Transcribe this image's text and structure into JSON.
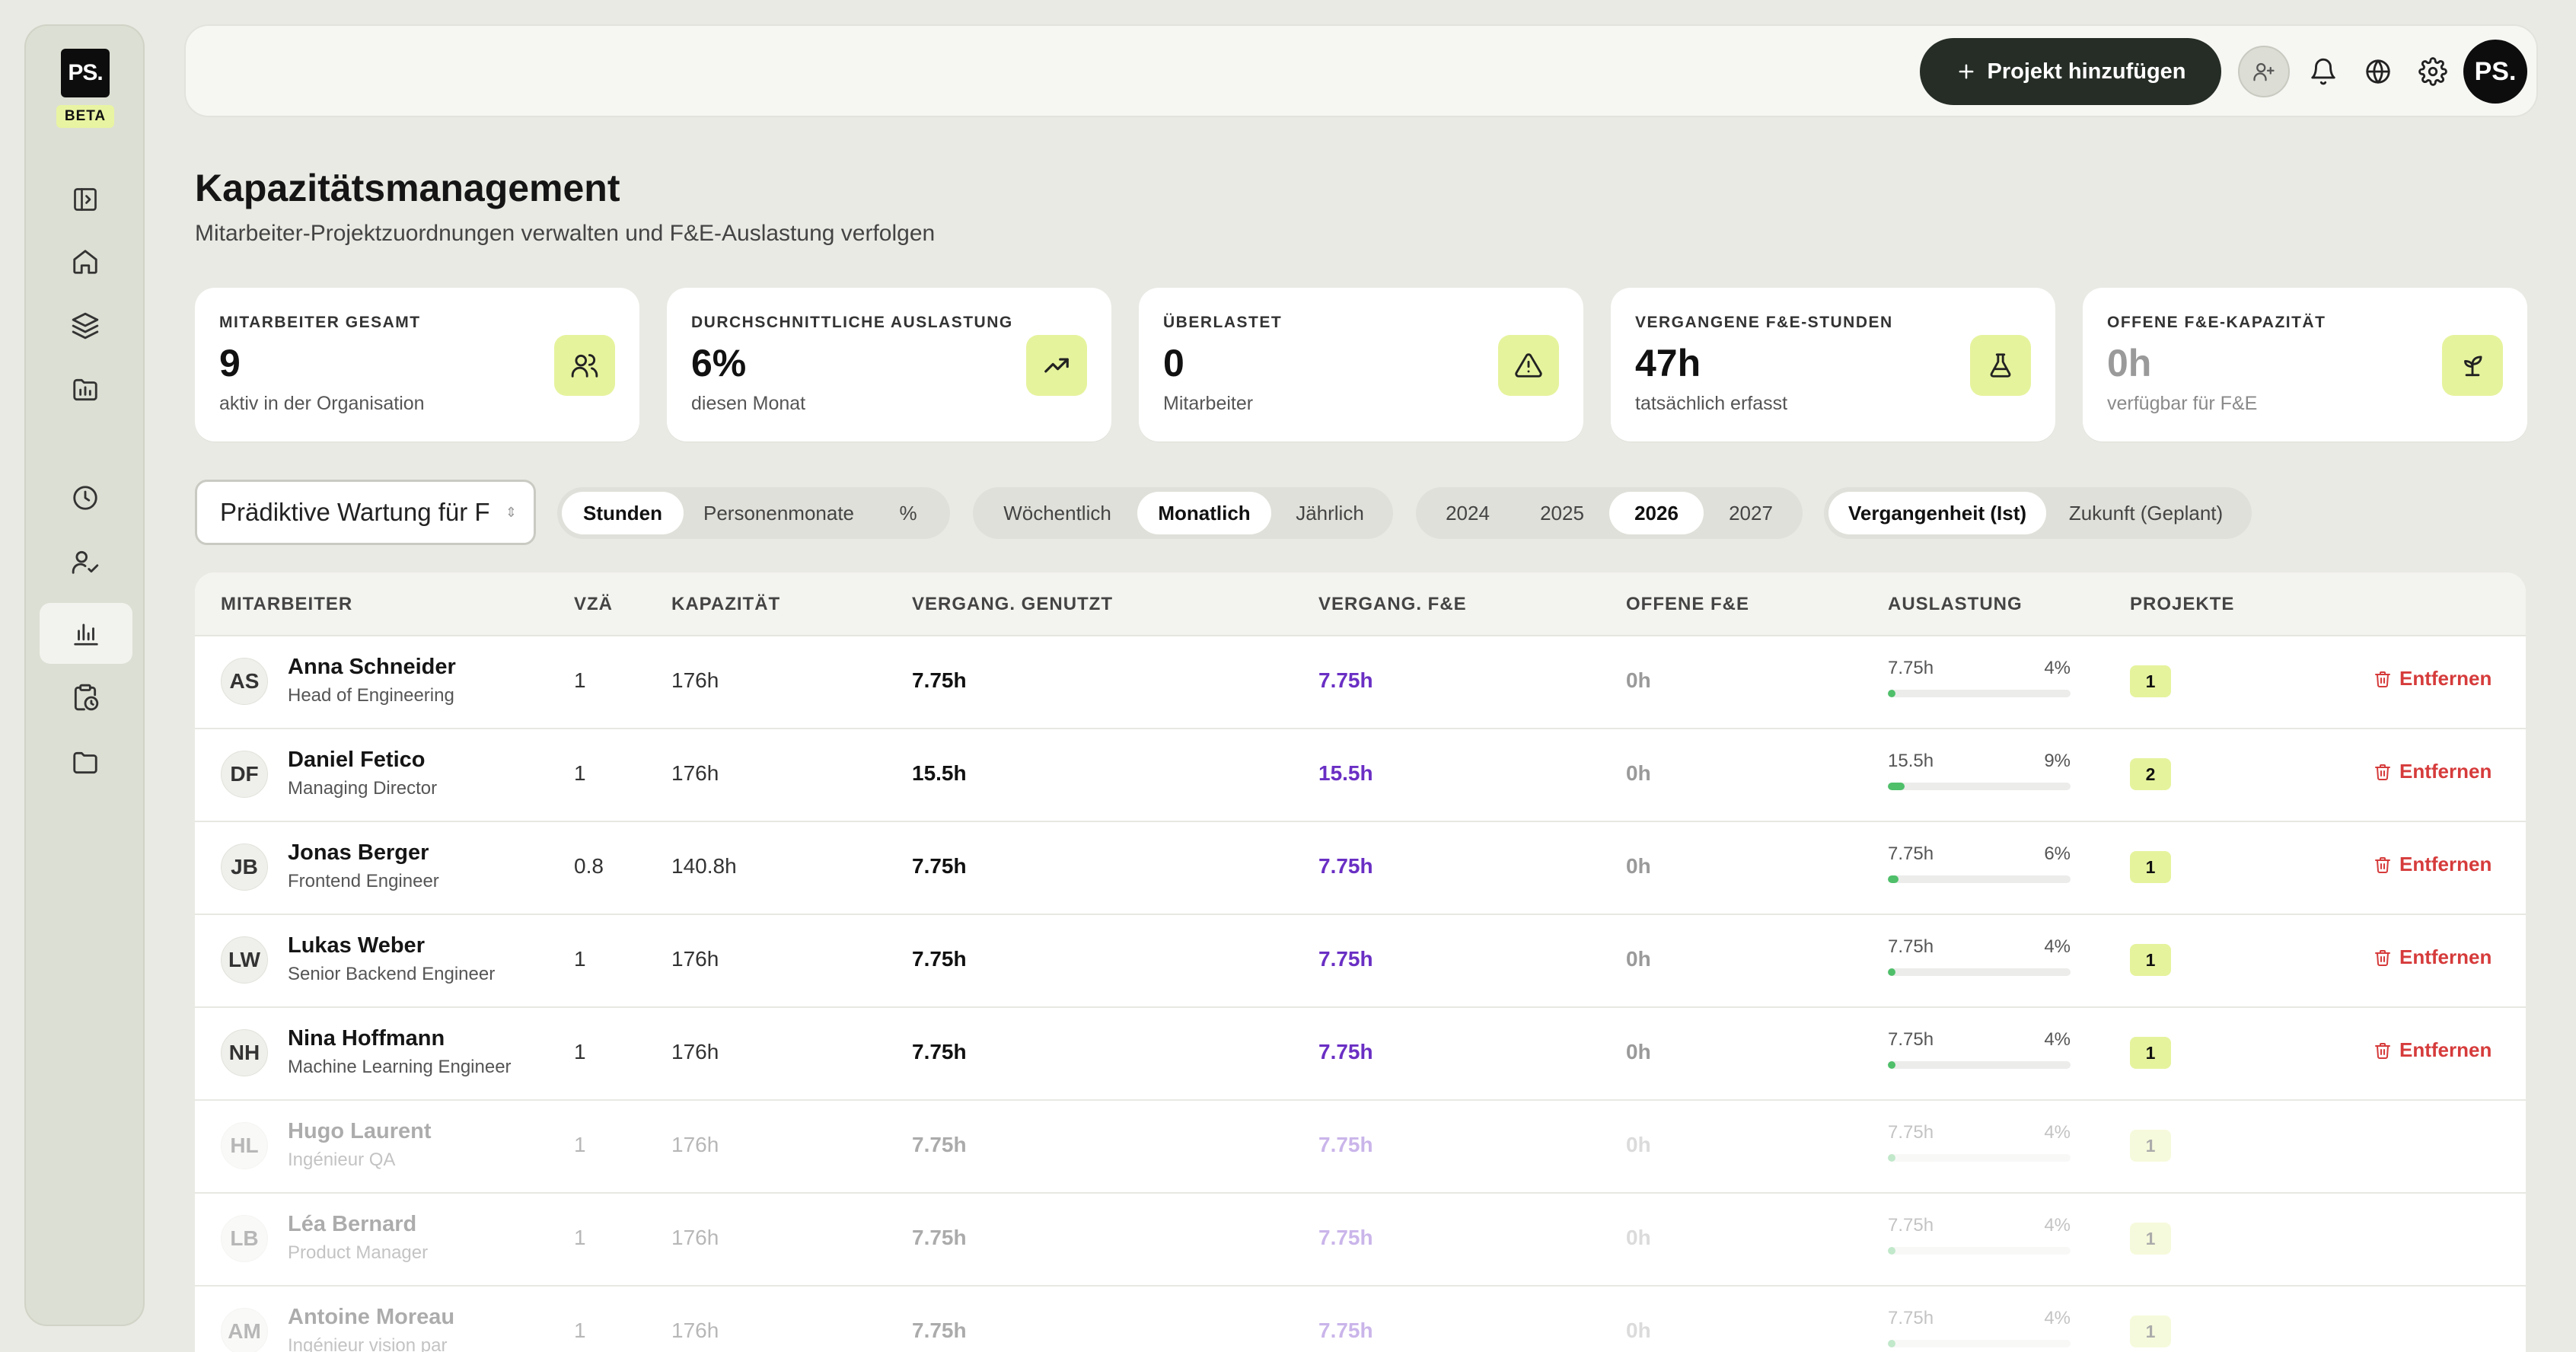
{
  "brand": {
    "logo": "PS.",
    "badge": "BETA"
  },
  "sidebar": {
    "icons": [
      "panel-toggle-icon",
      "home-icon",
      "layers-icon",
      "folder-chart-icon",
      "clock-icon",
      "user-check-icon",
      "bar-chart-icon",
      "clipboard-clock-icon",
      "folder-icon"
    ],
    "active": "bar-chart-icon"
  },
  "topbar": {
    "add_project_label": "Projekt hinzufügen",
    "avatar_initials": "PS."
  },
  "page": {
    "title": "Kapazitätsmanagement",
    "subtitle": "Mitarbeiter-Projektzuordnungen verwalten und F&E-Auslastung verfolgen"
  },
  "stats": [
    {
      "label": "MITARBEITER GESAMT",
      "value": "9",
      "sub": "aktiv in der Organisation",
      "icon": "users-icon"
    },
    {
      "label": "DURCHSCHNITTLICHE AUSLASTUNG",
      "value": "6%",
      "sub": "diesen Monat",
      "icon": "trending-up-icon"
    },
    {
      "label": "ÜBERLASTET",
      "value": "0",
      "sub": "Mitarbeiter",
      "icon": "warning-icon"
    },
    {
      "label": "VERGANGENE F&E-STUNDEN",
      "value": "47h",
      "sub": "tatsächlich erfasst",
      "icon": "flask-icon"
    },
    {
      "label": "OFFENE F&E-KAPAZITÄT",
      "value": "0h",
      "sub": "verfügbar für F&E",
      "icon": "sprout-icon"
    }
  ],
  "filters": {
    "project_value": "Prädiktive Wartung für F",
    "unit": {
      "options": [
        "Stunden",
        "Personenmonate",
        "%"
      ],
      "selected": "Stunden"
    },
    "period": {
      "options": [
        "Wöchentlich",
        "Monatlich",
        "Jährlich"
      ],
      "selected": "Monatlich"
    },
    "year": {
      "options": [
        "2024",
        "2025",
        "2026",
        "2027"
      ],
      "selected": "2026"
    },
    "mode": {
      "options": [
        "Vergangenheit (Ist)",
        "Zukunft (Geplant)"
      ],
      "selected": "Vergangenheit (Ist)"
    }
  },
  "table": {
    "headers": [
      "MITARBEITER",
      "VZÄ",
      "KAPAZITÄT",
      "VERGANG. GENUTZT",
      "VERGANG. F&E",
      "OFFENE F&E",
      "AUSLASTUNG",
      "PROJEKTE"
    ],
    "remove_label": "Entfernen",
    "rows": [
      {
        "initials": "AS",
        "name": "Anna Schneider",
        "role": "Head of Engineering",
        "fte": "1",
        "capacity": "176h",
        "used": "7.75h",
        "rnd": "7.75h",
        "open": "0h",
        "util_hours": "7.75h",
        "util_pct": "4%",
        "util": 0.04,
        "projects": "1",
        "removable": true
      },
      {
        "initials": "DF",
        "name": "Daniel Fetico",
        "role": "Managing Director",
        "fte": "1",
        "capacity": "176h",
        "used": "15.5h",
        "rnd": "15.5h",
        "open": "0h",
        "util_hours": "15.5h",
        "util_pct": "9%",
        "util": 0.09,
        "projects": "2",
        "removable": true
      },
      {
        "initials": "JB",
        "name": "Jonas Berger",
        "role": "Frontend Engineer",
        "fte": "0.8",
        "capacity": "140.8h",
        "used": "7.75h",
        "rnd": "7.75h",
        "open": "0h",
        "util_hours": "7.75h",
        "util_pct": "6%",
        "util": 0.06,
        "projects": "1",
        "removable": true
      },
      {
        "initials": "LW",
        "name": "Lukas Weber",
        "role": "Senior Backend Engineer",
        "fte": "1",
        "capacity": "176h",
        "used": "7.75h",
        "rnd": "7.75h",
        "open": "0h",
        "util_hours": "7.75h",
        "util_pct": "4%",
        "util": 0.04,
        "projects": "1",
        "removable": true
      },
      {
        "initials": "NH",
        "name": "Nina Hoffmann",
        "role": "Machine Learning Engineer",
        "fte": "1",
        "capacity": "176h",
        "used": "7.75h",
        "rnd": "7.75h",
        "open": "0h",
        "util_hours": "7.75h",
        "util_pct": "4%",
        "util": 0.04,
        "projects": "1",
        "removable": true
      },
      {
        "initials": "HL",
        "name": "Hugo Laurent",
        "role": "Ingénieur QA",
        "fte": "1",
        "capacity": "176h",
        "used": "7.75h",
        "rnd": "7.75h",
        "open": "0h",
        "util_hours": "7.75h",
        "util_pct": "4%",
        "util": 0.04,
        "projects": "1",
        "removable": false
      },
      {
        "initials": "LB",
        "name": "Léa Bernard",
        "role": "Product Manager",
        "fte": "1",
        "capacity": "176h",
        "used": "7.75h",
        "rnd": "7.75h",
        "open": "0h",
        "util_hours": "7.75h",
        "util_pct": "4%",
        "util": 0.04,
        "projects": "1",
        "removable": false
      },
      {
        "initials": "AM",
        "name": "Antoine Moreau",
        "role": "Ingénieur vision par",
        "fte": "1",
        "capacity": "176h",
        "used": "7.75h",
        "rnd": "7.75h",
        "open": "0h",
        "util_hours": "7.75h",
        "util_pct": "4%",
        "util": 0.04,
        "projects": "1",
        "removable": false
      }
    ]
  },
  "colors": {
    "accent": "#e6f39d",
    "dark": "#252d26",
    "rnd": "#6a2fc4",
    "danger": "#d63b3b",
    "bar": "#4fbf6a"
  }
}
